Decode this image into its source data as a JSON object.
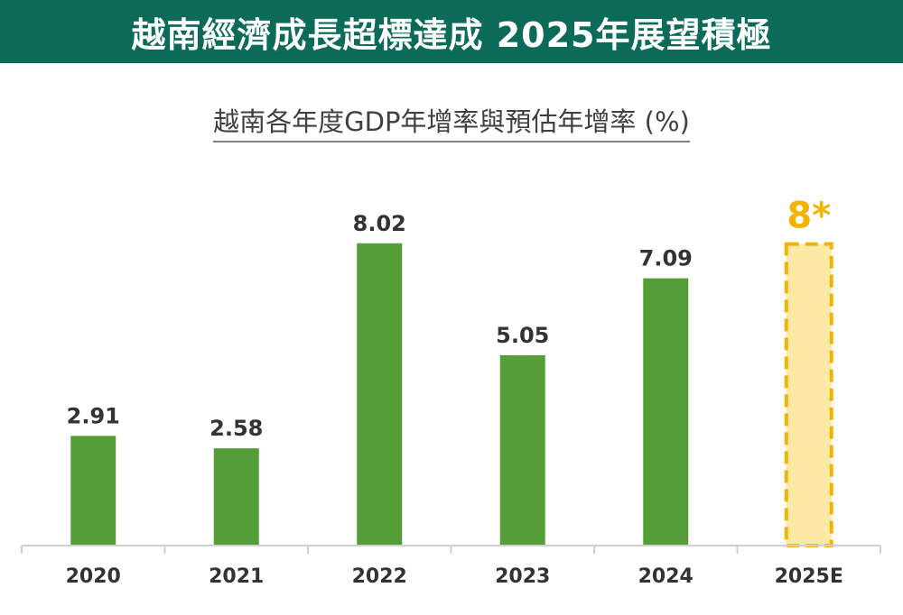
{
  "header": {
    "title": "越南經濟成長超標達成 2025年展望積極"
  },
  "chart_data": {
    "type": "bar",
    "title": "越南各年度GDP年增率與預估年增率 (%)",
    "categories": [
      "2020",
      "2021",
      "2022",
      "2023",
      "2024",
      "2025E"
    ],
    "values": [
      2.91,
      2.58,
      8.02,
      5.05,
      7.09,
      8
    ],
    "labels": [
      "2.91",
      "2.58",
      "8.02",
      "5.05",
      "7.09",
      "8*"
    ],
    "estimated": [
      false,
      false,
      false,
      false,
      false,
      true
    ],
    "ylim": [
      0,
      10
    ],
    "grid": false,
    "colors": {
      "actual": "#559e37",
      "estimate_fill": "#fde9a6",
      "estimate_border": "#f2b400",
      "axis": "#d0d0d0"
    }
  }
}
